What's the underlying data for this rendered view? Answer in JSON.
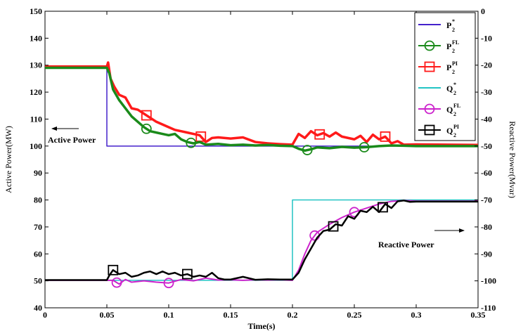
{
  "chart_data": {
    "type": "line",
    "title": "",
    "xlabel": "Time(s)",
    "ylabel_left": "Active Power(MW)",
    "ylabel_right": "Reactive Power(Mvar)",
    "xlim": [
      0,
      0.35
    ],
    "ylim_left": [
      40,
      150
    ],
    "ylim_right": [
      -110,
      0
    ],
    "x_ticks": [
      "0",
      "0.05",
      "0.1",
      "0.15",
      "0.2",
      "0.25",
      "0.3",
      "0.35"
    ],
    "y_left_ticks": [
      "40",
      "50",
      "60",
      "70",
      "80",
      "90",
      "100",
      "110",
      "120",
      "130",
      "140",
      "150"
    ],
    "y_right_ticks": [
      "0",
      "-10",
      "-20",
      "-30",
      "-40",
      "-50",
      "-60",
      "-70",
      "-80",
      "-90",
      "-100",
      "-110"
    ],
    "grid": false,
    "legend_position": "top-right",
    "annotations": [
      {
        "text": "Active Power",
        "arrow": "left"
      },
      {
        "text": "Reactive Power",
        "arrow": "right"
      }
    ],
    "legend": [
      {
        "base": "P",
        "sub": "2",
        "sup": "*",
        "color": "#4422cc",
        "marker": "none"
      },
      {
        "base": "P",
        "sub": "2",
        "sup": "FL",
        "color": "#1a8a1a",
        "marker": "circle"
      },
      {
        "base": "P",
        "sub": "2",
        "sup": "PI",
        "color": "#ff1a1a",
        "marker": "square"
      },
      {
        "base": "Q",
        "sub": "2",
        "sup": "*",
        "color": "#22c4c4",
        "marker": "none"
      },
      {
        "base": "Q",
        "sub": "2",
        "sup": "FL",
        "color": "#cc22cc",
        "marker": "circle"
      },
      {
        "base": "Q",
        "sub": "2",
        "sup": "PI",
        "color": "#000000",
        "marker": "square"
      }
    ],
    "series": [
      {
        "name": "P2*",
        "axis": "left",
        "color": "#4422cc",
        "width": 1.5,
        "marker": "none",
        "x": [
          0,
          0.05,
          0.05,
          0.35
        ],
        "y": [
          129.5,
          129.5,
          100,
          100
        ]
      },
      {
        "name": "Q2*",
        "axis": "left",
        "color": "#22c4c4",
        "width": 1.5,
        "marker": "none",
        "x": [
          0,
          0.2,
          0.2,
          0.35
        ],
        "y": [
          50.2,
          50.2,
          80,
          80
        ]
      },
      {
        "name": "P2FL",
        "axis": "left",
        "color": "#1a8a1a",
        "width": 3.5,
        "marker": "circle",
        "markers_x": [
          0.082,
          0.118,
          0.212,
          0.258
        ],
        "x": [
          0,
          0.05,
          0.052,
          0.055,
          0.06,
          0.065,
          0.07,
          0.075,
          0.08,
          0.085,
          0.09,
          0.095,
          0.1,
          0.105,
          0.11,
          0.115,
          0.12,
          0.125,
          0.13,
          0.14,
          0.15,
          0.16,
          0.17,
          0.18,
          0.19,
          0.2,
          0.205,
          0.21,
          0.215,
          0.22,
          0.23,
          0.24,
          0.25,
          0.26,
          0.27,
          0.28,
          0.29,
          0.3,
          0.35
        ],
        "y": [
          129,
          129,
          127,
          121,
          117,
          114,
          111,
          109,
          107,
          105.5,
          105,
          104.5,
          104,
          104.5,
          102.5,
          101.5,
          101,
          101.5,
          100.5,
          100.8,
          100.3,
          100.5,
          100.2,
          100.4,
          100.1,
          100,
          99,
          98.3,
          98.8,
          99.5,
          99.2,
          99.7,
          99.4,
          99.6,
          100,
          100.2,
          100.1,
          100,
          100
        ]
      },
      {
        "name": "P2PI",
        "axis": "left",
        "color": "#ff1a1a",
        "width": 3.5,
        "marker": "square",
        "markers_x": [
          0.082,
          0.126,
          0.222,
          0.275
        ],
        "x": [
          0,
          0.05,
          0.051,
          0.053,
          0.056,
          0.06,
          0.065,
          0.07,
          0.075,
          0.08,
          0.085,
          0.09,
          0.095,
          0.1,
          0.105,
          0.11,
          0.115,
          0.12,
          0.125,
          0.13,
          0.135,
          0.14,
          0.15,
          0.16,
          0.17,
          0.18,
          0.19,
          0.2,
          0.205,
          0.21,
          0.215,
          0.22,
          0.225,
          0.23,
          0.235,
          0.24,
          0.25,
          0.255,
          0.26,
          0.265,
          0.27,
          0.275,
          0.28,
          0.285,
          0.29,
          0.3,
          0.35
        ],
        "y": [
          129.5,
          129.5,
          131,
          125,
          122,
          119,
          118,
          114,
          113.5,
          112,
          110.5,
          109,
          108,
          107,
          106,
          105.5,
          105,
          104.5,
          104,
          101.5,
          103,
          103.2,
          102.8,
          103.2,
          101.5,
          101,
          100.7,
          100.5,
          104.5,
          103,
          105.5,
          104,
          104.8,
          103.5,
          105,
          103.5,
          102.5,
          103.8,
          101.5,
          104.2,
          102.5,
          103.5,
          101,
          101.8,
          100.5,
          100.6,
          100.4
        ]
      },
      {
        "name": "Q2FL",
        "axis": "left",
        "color": "#cc22cc",
        "width": 2,
        "marker": "circle",
        "markers_x": [
          0.058,
          0.1,
          0.218,
          0.25
        ],
        "x": [
          0,
          0.05,
          0.055,
          0.06,
          0.065,
          0.07,
          0.08,
          0.09,
          0.1,
          0.11,
          0.12,
          0.13,
          0.14,
          0.15,
          0.16,
          0.17,
          0.18,
          0.19,
          0.2,
          0.205,
          0.21,
          0.215,
          0.22,
          0.23,
          0.24,
          0.25,
          0.26,
          0.27,
          0.28,
          0.29,
          0.3,
          0.35
        ],
        "y": [
          50.2,
          50.2,
          50.2,
          48.8,
          50.5,
          49.5,
          50,
          49.5,
          49.2,
          50.5,
          50,
          51,
          50.3,
          50.4,
          50.2,
          50.4,
          50.3,
          50.4,
          50.2,
          54,
          60,
          65,
          68,
          71,
          73.5,
          75.5,
          77,
          78.5,
          79.5,
          79.8,
          79.6,
          79.6
        ]
      },
      {
        "name": "Q2PI",
        "axis": "left",
        "color": "#000000",
        "width": 2.5,
        "marker": "square",
        "markers_x": [
          0.055,
          0.115,
          0.233,
          0.273
        ],
        "x": [
          0,
          0.05,
          0.052,
          0.055,
          0.06,
          0.065,
          0.07,
          0.075,
          0.08,
          0.085,
          0.09,
          0.095,
          0.1,
          0.105,
          0.11,
          0.115,
          0.12,
          0.125,
          0.13,
          0.135,
          0.14,
          0.145,
          0.15,
          0.16,
          0.17,
          0.18,
          0.19,
          0.2,
          0.205,
          0.21,
          0.215,
          0.22,
          0.225,
          0.23,
          0.235,
          0.24,
          0.245,
          0.25,
          0.255,
          0.26,
          0.265,
          0.27,
          0.275,
          0.28,
          0.285,
          0.29,
          0.295,
          0.3,
          0.35
        ],
        "y": [
          50.3,
          50.3,
          52,
          54,
          52.5,
          53,
          51.5,
          52,
          53,
          53.5,
          52.5,
          53.5,
          52.5,
          53,
          52,
          52.5,
          51.5,
          52,
          51.5,
          53,
          51,
          50.5,
          50.5,
          51.5,
          50.4,
          50.6,
          50.5,
          50.5,
          53,
          58,
          62,
          66,
          68.5,
          69,
          71,
          70.5,
          74,
          73,
          76,
          75.5,
          77.5,
          75.5,
          78.5,
          77,
          79.5,
          79.8,
          79.3,
          79.4,
          79.4
        ]
      }
    ]
  }
}
